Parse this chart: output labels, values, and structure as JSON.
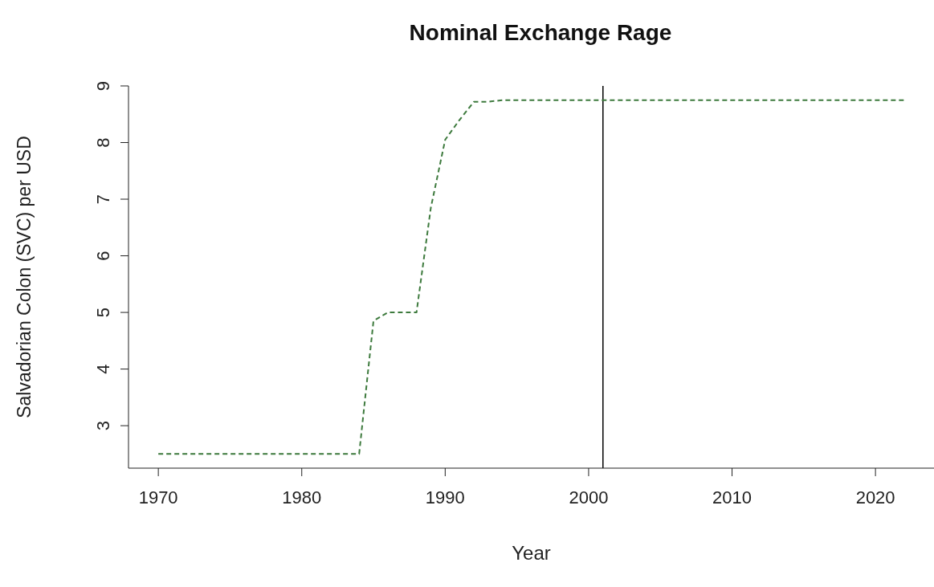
{
  "chart_data": {
    "type": "line",
    "title": "Nominal Exchange Rage",
    "xlabel": "Year",
    "ylabel": "Salvadorian Colon (SVC) per USD",
    "x": [
      1970,
      1971,
      1972,
      1973,
      1974,
      1975,
      1976,
      1977,
      1978,
      1979,
      1980,
      1981,
      1982,
      1983,
      1984,
      1985,
      1986,
      1987,
      1988,
      1989,
      1990,
      1991,
      1992,
      1993,
      1994,
      1995,
      1996,
      1997,
      1998,
      1999,
      2000,
      2001,
      2002,
      2003,
      2004,
      2005,
      2006,
      2007,
      2008,
      2009,
      2010,
      2011,
      2012,
      2013,
      2014,
      2015,
      2016,
      2017,
      2018,
      2019,
      2020,
      2021,
      2022
    ],
    "series": [
      {
        "color": "#3d7a3d",
        "values": [
          2.5,
          2.5,
          2.5,
          2.5,
          2.5,
          2.5,
          2.5,
          2.5,
          2.5,
          2.5,
          2.5,
          2.5,
          2.5,
          2.5,
          2.5,
          4.85,
          5.0,
          5.0,
          5.0,
          6.85,
          8.05,
          8.4,
          8.72,
          8.72,
          8.75,
          8.75,
          8.75,
          8.75,
          8.75,
          8.75,
          8.75,
          8.75,
          8.75,
          8.75,
          8.75,
          8.75,
          8.75,
          8.75,
          8.75,
          8.75,
          8.75,
          8.75,
          8.75,
          8.75,
          8.75,
          8.75,
          8.75,
          8.75,
          8.75,
          8.75,
          8.75,
          8.75,
          8.75
        ]
      }
    ],
    "xlim": [
      1967.92,
      2024.08
    ],
    "ylim": [
      2.25,
      9
    ],
    "xticks": [
      1970,
      1980,
      1990,
      2000,
      2010,
      2020
    ],
    "yticks": [
      3,
      4,
      5,
      6,
      7,
      8,
      9
    ],
    "ref_lines": [
      {
        "axis": "x",
        "value": 2001,
        "color": "#000000"
      }
    ],
    "grid": false,
    "legend": false,
    "marker": "none",
    "line_style": "dashed"
  }
}
